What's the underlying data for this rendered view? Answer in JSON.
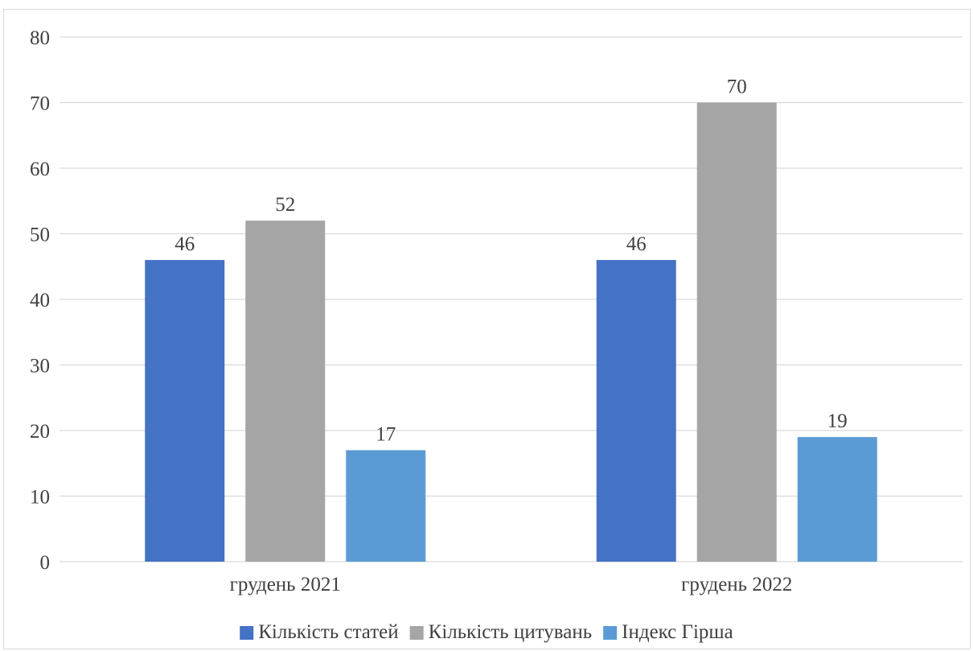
{
  "chart_data": {
    "type": "bar",
    "title": "",
    "xlabel": "",
    "ylabel": "",
    "categories": [
      "грудень 2021",
      "грудень 2022"
    ],
    "series": [
      {
        "name": "Кількість статей",
        "values": [
          46,
          46
        ],
        "color": "#4472C4"
      },
      {
        "name": "Кількість цитувань",
        "values": [
          52,
          70
        ],
        "color": "#A5A5A5"
      },
      {
        "name": "Індекс Гірша",
        "values": [
          17,
          19
        ],
        "color": "#5B9BD5"
      }
    ],
    "ylim": [
      0,
      80
    ],
    "yticks": [
      0,
      10,
      20,
      30,
      40,
      50,
      60,
      70,
      80
    ],
    "grid": true,
    "legend_position": "bottom",
    "data_labels": true
  }
}
